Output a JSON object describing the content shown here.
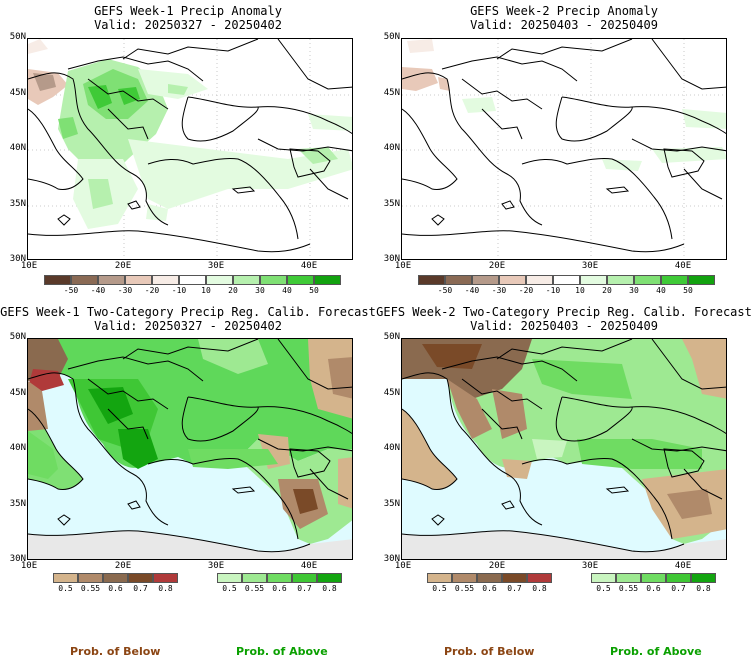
{
  "panels": [
    {
      "title": "GEFS Week-1 Precip Anomaly",
      "valid": "Valid: 20250327 - 20250402"
    },
    {
      "title": "GEFS Week-2 Precip Anomaly",
      "valid": "Valid: 20250403 - 20250409"
    },
    {
      "title": "GEFS Week-1 Two-Category Precip Reg. Calib. Forecast",
      "valid": "Valid: 20250327 - 20250402"
    },
    {
      "title": "GEFS Week-2 Two-Category Precip Reg. Calib. Forecast",
      "valid": "Valid: 20250403 - 20250409"
    }
  ],
  "lat_labels": [
    "50N",
    "45N",
    "40N",
    "35N",
    "30N"
  ],
  "lon_labels": [
    "10E",
    "20E",
    "30E",
    "40E"
  ],
  "anomaly_colorbar": {
    "labels": [
      "-50",
      "-40",
      "-30",
      "-20",
      "-10",
      "10",
      "20",
      "30",
      "40",
      "50"
    ],
    "colors": [
      "#5a3a2a",
      "#8a6a55",
      "#b59a8a",
      "#e8c9b9",
      "#f7ece6",
      "#ffffff",
      "#e3fbe0",
      "#b6f0ae",
      "#7fe074",
      "#3fca37",
      "#12a20f"
    ]
  },
  "prob_below_colorbar": {
    "labels": [
      "0.5",
      "0.55",
      "0.6",
      "0.7",
      "0.8"
    ],
    "colors": [
      "#d4b48c",
      "#b08a6a",
      "#8a6a4f",
      "#7a4a28",
      "#b03a3a"
    ]
  },
  "prob_above_colorbar": {
    "labels": [
      "0.5",
      "0.55",
      "0.6",
      "0.7",
      "0.8"
    ],
    "colors": [
      "#c9f5c0",
      "#9ee992",
      "#6fdc62",
      "#3fc735",
      "#13a510"
    ]
  },
  "footer": {
    "below": "Prob. of Below",
    "above": "Prob. of Above"
  },
  "colors": {
    "sea": "#dffbff",
    "land_below": "#b9946c",
    "land_above": "#5fd85a",
    "outside": "#e8e8e8",
    "footer_below": "#8b4513",
    "footer_above": "#0aa000"
  }
}
